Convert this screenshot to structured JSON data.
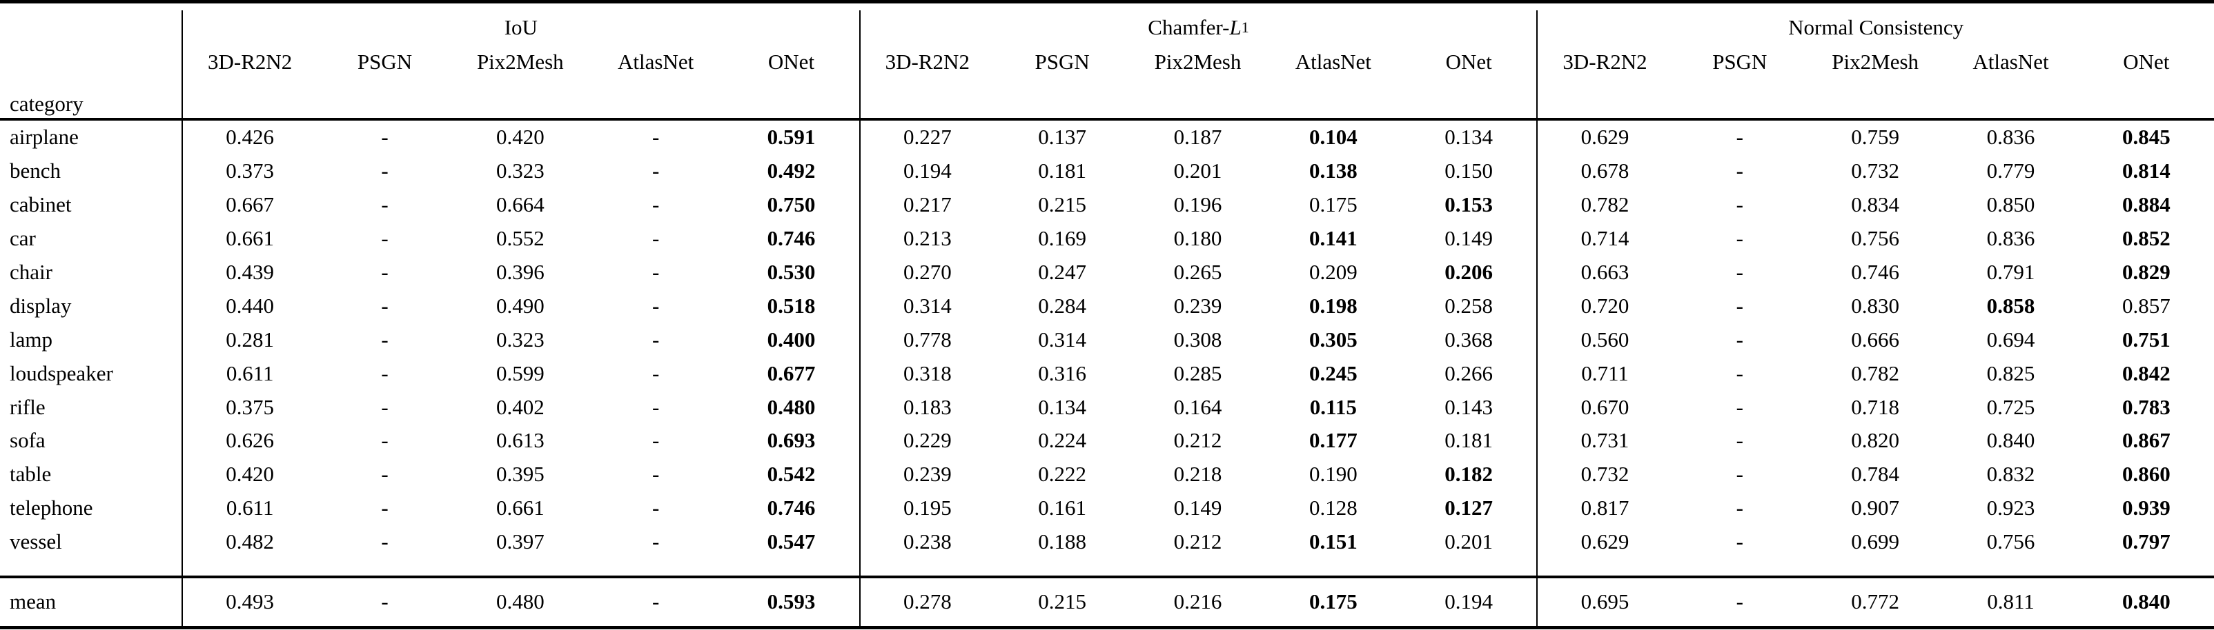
{
  "table": {
    "category_header": "category",
    "groups": [
      {
        "title": "IoU",
        "methods": [
          "3D-R2N2",
          "PSGN",
          "Pix2Mesh",
          "AtlasNet",
          "ONet"
        ]
      },
      {
        "title_prefix": "Chamfer-",
        "title_math": "L",
        "title_sub": "1",
        "methods": [
          "3D-R2N2",
          "PSGN",
          "Pix2Mesh",
          "AtlasNet",
          "ONet"
        ]
      },
      {
        "title": "Normal Consistency",
        "methods": [
          "3D-R2N2",
          "PSGN",
          "Pix2Mesh",
          "AtlasNet",
          "ONet"
        ]
      }
    ],
    "rows": [
      {
        "category": "airplane",
        "iou": [
          "0.426",
          "-",
          "0.420",
          "-",
          {
            "v": "0.591",
            "bold": true
          }
        ],
        "chamfer": [
          "0.227",
          "0.137",
          "0.187",
          {
            "v": "0.104",
            "bold": true
          },
          "0.134"
        ],
        "normal": [
          "0.629",
          "-",
          "0.759",
          "0.836",
          {
            "v": "0.845",
            "bold": true
          }
        ]
      },
      {
        "category": "bench",
        "iou": [
          "0.373",
          "-",
          "0.323",
          "-",
          {
            "v": "0.492",
            "bold": true
          }
        ],
        "chamfer": [
          "0.194",
          "0.181",
          "0.201",
          {
            "v": "0.138",
            "bold": true
          },
          "0.150"
        ],
        "normal": [
          "0.678",
          "-",
          "0.732",
          "0.779",
          {
            "v": "0.814",
            "bold": true
          }
        ]
      },
      {
        "category": "cabinet",
        "iou": [
          "0.667",
          "-",
          "0.664",
          "-",
          {
            "v": "0.750",
            "bold": true
          }
        ],
        "chamfer": [
          "0.217",
          "0.215",
          "0.196",
          "0.175",
          {
            "v": "0.153",
            "bold": true
          }
        ],
        "normal": [
          "0.782",
          "-",
          "0.834",
          "0.850",
          {
            "v": "0.884",
            "bold": true
          }
        ]
      },
      {
        "category": "car",
        "iou": [
          "0.661",
          "-",
          "0.552",
          "-",
          {
            "v": "0.746",
            "bold": true
          }
        ],
        "chamfer": [
          "0.213",
          "0.169",
          "0.180",
          {
            "v": "0.141",
            "bold": true
          },
          "0.149"
        ],
        "normal": [
          "0.714",
          "-",
          "0.756",
          "0.836",
          {
            "v": "0.852",
            "bold": true
          }
        ]
      },
      {
        "category": "chair",
        "iou": [
          "0.439",
          "-",
          "0.396",
          "-",
          {
            "v": "0.530",
            "bold": true
          }
        ],
        "chamfer": [
          "0.270",
          "0.247",
          "0.265",
          "0.209",
          {
            "v": "0.206",
            "bold": true
          }
        ],
        "normal": [
          "0.663",
          "-",
          "0.746",
          "0.791",
          {
            "v": "0.829",
            "bold": true
          }
        ]
      },
      {
        "category": "display",
        "iou": [
          "0.440",
          "-",
          "0.490",
          "-",
          {
            "v": "0.518",
            "bold": true
          }
        ],
        "chamfer": [
          "0.314",
          "0.284",
          "0.239",
          {
            "v": "0.198",
            "bold": true
          },
          "0.258"
        ],
        "normal": [
          "0.720",
          "-",
          "0.830",
          {
            "v": "0.858",
            "bold": true
          },
          "0.857"
        ]
      },
      {
        "category": "lamp",
        "iou": [
          "0.281",
          "-",
          "0.323",
          "-",
          {
            "v": "0.400",
            "bold": true
          }
        ],
        "chamfer": [
          "0.778",
          "0.314",
          "0.308",
          {
            "v": "0.305",
            "bold": true
          },
          "0.368"
        ],
        "normal": [
          "0.560",
          "-",
          "0.666",
          "0.694",
          {
            "v": "0.751",
            "bold": true
          }
        ]
      },
      {
        "category": "loudspeaker",
        "iou": [
          "0.611",
          "-",
          "0.599",
          "-",
          {
            "v": "0.677",
            "bold": true
          }
        ],
        "chamfer": [
          "0.318",
          "0.316",
          "0.285",
          {
            "v": "0.245",
            "bold": true
          },
          "0.266"
        ],
        "normal": [
          "0.711",
          "-",
          "0.782",
          "0.825",
          {
            "v": "0.842",
            "bold": true
          }
        ]
      },
      {
        "category": "rifle",
        "iou": [
          "0.375",
          "-",
          "0.402",
          "-",
          {
            "v": "0.480",
            "bold": true
          }
        ],
        "chamfer": [
          "0.183",
          "0.134",
          "0.164",
          {
            "v": "0.115",
            "bold": true
          },
          "0.143"
        ],
        "normal": [
          "0.670",
          "-",
          "0.718",
          "0.725",
          {
            "v": "0.783",
            "bold": true
          }
        ]
      },
      {
        "category": "sofa",
        "iou": [
          "0.626",
          "-",
          "0.613",
          "-",
          {
            "v": "0.693",
            "bold": true
          }
        ],
        "chamfer": [
          "0.229",
          "0.224",
          "0.212",
          {
            "v": "0.177",
            "bold": true
          },
          "0.181"
        ],
        "normal": [
          "0.731",
          "-",
          "0.820",
          "0.840",
          {
            "v": "0.867",
            "bold": true
          }
        ]
      },
      {
        "category": "table",
        "iou": [
          "0.420",
          "-",
          "0.395",
          "-",
          {
            "v": "0.542",
            "bold": true
          }
        ],
        "chamfer": [
          "0.239",
          "0.222",
          "0.218",
          "0.190",
          {
            "v": "0.182",
            "bold": true
          }
        ],
        "normal": [
          "0.732",
          "-",
          "0.784",
          "0.832",
          {
            "v": "0.860",
            "bold": true
          }
        ]
      },
      {
        "category": "telephone",
        "iou": [
          "0.611",
          "-",
          "0.661",
          "-",
          {
            "v": "0.746",
            "bold": true
          }
        ],
        "chamfer": [
          "0.195",
          "0.161",
          "0.149",
          "0.128",
          {
            "v": "0.127",
            "bold": true
          }
        ],
        "normal": [
          "0.817",
          "-",
          "0.907",
          "0.923",
          {
            "v": "0.939",
            "bold": true
          }
        ]
      },
      {
        "category": "vessel",
        "iou": [
          "0.482",
          "-",
          "0.397",
          "-",
          {
            "v": "0.547",
            "bold": true
          }
        ],
        "chamfer": [
          "0.238",
          "0.188",
          "0.212",
          {
            "v": "0.151",
            "bold": true
          },
          "0.201"
        ],
        "normal": [
          "0.629",
          "-",
          "0.699",
          "0.756",
          {
            "v": "0.797",
            "bold": true
          }
        ]
      }
    ],
    "mean": {
      "category": "mean",
      "iou": [
        "0.493",
        "-",
        "0.480",
        "-",
        {
          "v": "0.593",
          "bold": true
        }
      ],
      "chamfer": [
        "0.278",
        "0.215",
        "0.216",
        {
          "v": "0.175",
          "bold": true
        },
        "0.194"
      ],
      "normal": [
        "0.695",
        "-",
        "0.772",
        "0.811",
        {
          "v": "0.840",
          "bold": true
        }
      ]
    }
  }
}
